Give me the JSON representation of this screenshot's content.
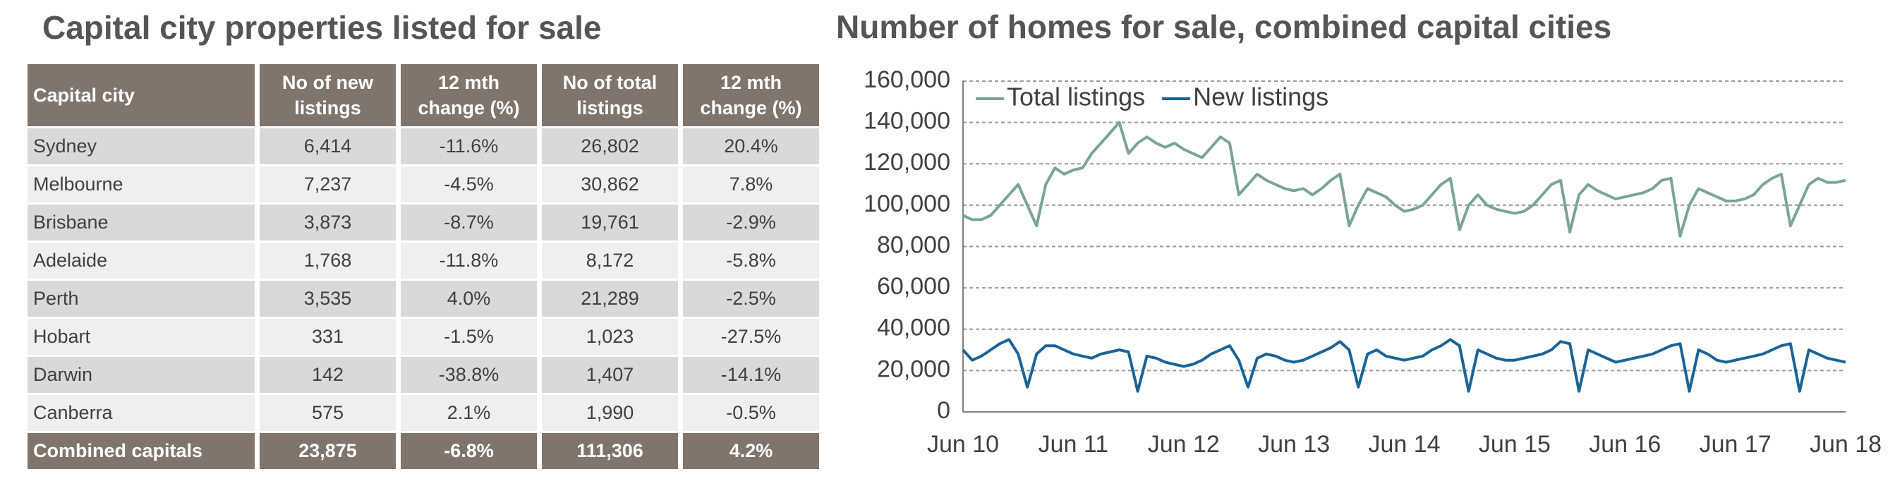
{
  "table": {
    "title": "Capital city properties listed for sale",
    "header": [
      "Capital city",
      "No of new listings",
      "12 mth change (%)",
      "No of total listings",
      "12 mth change (%)"
    ],
    "rows": [
      [
        "Sydney",
        "6,414",
        "-11.6%",
        "26,802",
        "20.4%"
      ],
      [
        "Melbourne",
        "7,237",
        "-4.5%",
        "30,862",
        "7.8%"
      ],
      [
        "Brisbane",
        "3,873",
        "-8.7%",
        "19,761",
        "-2.9%"
      ],
      [
        "Adelaide",
        "1,768",
        "-11.8%",
        "8,172",
        "-5.8%"
      ],
      [
        "Perth",
        "3,535",
        "4.0%",
        "21,289",
        "-2.5%"
      ],
      [
        "Hobart",
        "331",
        "-1.5%",
        "1,023",
        "-27.5%"
      ],
      [
        "Darwin",
        "142",
        "-38.8%",
        "1,407",
        "-14.1%"
      ],
      [
        "Canberra",
        "575",
        "2.1%",
        "1,990",
        "-0.5%"
      ]
    ],
    "footer": [
      "Combined capitals",
      "23,875",
      "-6.8%",
      "111,306",
      "4.2%"
    ]
  },
  "chart_data": {
    "type": "line",
    "title": "Number of homes for sale, combined capital cities",
    "categories": [
      "Jun 10",
      null,
      null,
      null,
      null,
      null,
      null,
      null,
      null,
      null,
      null,
      null,
      "Jun 11",
      null,
      null,
      null,
      null,
      null,
      null,
      null,
      null,
      null,
      null,
      null,
      "Jun 12",
      null,
      null,
      null,
      null,
      null,
      null,
      null,
      null,
      null,
      null,
      null,
      "Jun 13",
      null,
      null,
      null,
      null,
      null,
      null,
      null,
      null,
      null,
      null,
      null,
      "Jun 14",
      null,
      null,
      null,
      null,
      null,
      null,
      null,
      null,
      null,
      null,
      null,
      "Jun 15",
      null,
      null,
      null,
      null,
      null,
      null,
      null,
      null,
      null,
      null,
      null,
      "Jun 16",
      null,
      null,
      null,
      null,
      null,
      null,
      null,
      null,
      null,
      null,
      null,
      "Jun 17",
      null,
      null,
      null,
      null,
      null,
      null,
      null,
      null,
      null,
      null,
      null,
      "Jun 18"
    ],
    "series": [
      {
        "name": "Total listings",
        "color": "#7aa595",
        "values": [
          95000,
          93000,
          93000,
          95000,
          100000,
          105000,
          110000,
          100000,
          90000,
          110000,
          118000,
          115000,
          117000,
          118000,
          125000,
          130000,
          135000,
          140000,
          125000,
          130000,
          133000,
          130000,
          128000,
          130000,
          127000,
          125000,
          123000,
          128000,
          133000,
          130000,
          105000,
          110000,
          115000,
          112000,
          110000,
          108000,
          107000,
          108000,
          105000,
          108000,
          112000,
          115000,
          90000,
          100000,
          108000,
          106000,
          104000,
          100000,
          97000,
          98000,
          100000,
          105000,
          110000,
          113000,
          88000,
          100000,
          105000,
          100000,
          98000,
          97000,
          96000,
          97000,
          100000,
          105000,
          110000,
          112000,
          87000,
          105000,
          110000,
          107000,
          105000,
          103000,
          104000,
          105000,
          106000,
          108000,
          112000,
          113000,
          85000,
          100000,
          108000,
          106000,
          104000,
          102000,
          102000,
          103000,
          105000,
          110000,
          113000,
          115000,
          90000,
          100000,
          110000,
          113000,
          111000,
          111000,
          112000
        ]
      },
      {
        "name": "New listings",
        "color": "#1a6496",
        "values": [
          30000,
          25000,
          27000,
          30000,
          33000,
          35000,
          28000,
          12000,
          28000,
          32000,
          32000,
          30000,
          28000,
          27000,
          26000,
          28000,
          29000,
          30000,
          29000,
          10000,
          27000,
          26000,
          24000,
          23000,
          22000,
          23000,
          25000,
          28000,
          30000,
          32000,
          25000,
          12000,
          26000,
          28000,
          27000,
          25000,
          24000,
          25000,
          27000,
          29000,
          31000,
          34000,
          30000,
          12000,
          28000,
          30000,
          27000,
          26000,
          25000,
          26000,
          27000,
          30000,
          32000,
          35000,
          32000,
          10000,
          30000,
          28000,
          26000,
          25000,
          25000,
          26000,
          27000,
          28000,
          30000,
          34000,
          33000,
          10000,
          30000,
          28000,
          26000,
          24000,
          25000,
          26000,
          27000,
          28000,
          30000,
          32000,
          33000,
          10000,
          30000,
          28000,
          25000,
          24000,
          25000,
          26000,
          27000,
          28000,
          30000,
          32000,
          33000,
          10000,
          30000,
          28000,
          26000,
          25000,
          24000
        ]
      }
    ],
    "ylim": [
      0,
      160000
    ],
    "yticks": [
      0,
      {
        "value": 20000,
        "label": "20,000"
      },
      {
        "value": 40000,
        "label": "40,000"
      },
      {
        "value": 60000,
        "label": "60,000"
      },
      {
        "value": 80000,
        "label": "80,000"
      },
      {
        "value": 100000,
        "label": "100,000"
      },
      {
        "value": 120000,
        "label": "120,000"
      },
      {
        "value": 140000,
        "label": "140,000"
      },
      {
        "value": 160000,
        "label": "160,000"
      }
    ],
    "grid": true,
    "legend": "top-left"
  }
}
